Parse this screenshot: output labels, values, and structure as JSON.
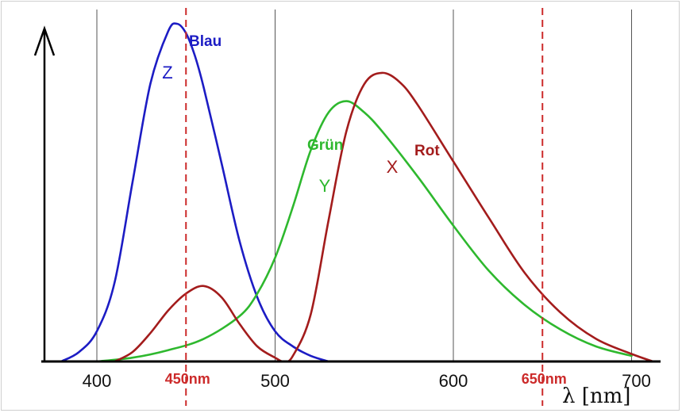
{
  "chart_data": {
    "type": "line",
    "xlabel": "λ [nm]",
    "xlim": [
      380,
      720
    ],
    "ylim": [
      0,
      1.85
    ],
    "x_ticks": [
      400,
      500,
      600,
      700
    ],
    "x_tick_labels": [
      "400",
      "500",
      "600",
      "700"
    ],
    "markers": [
      {
        "x": 450,
        "label": "450nm",
        "color": "#cc2a2a"
      },
      {
        "x": 650,
        "label": "650nm",
        "color": "#cc2a2a"
      }
    ],
    "series": [
      {
        "name": "Blau",
        "letter": "Z",
        "color": "#1c1cc4",
        "x": [
          380,
          390,
          400,
          410,
          420,
          430,
          440,
          445,
          450,
          455,
          460,
          470,
          480,
          490,
          500,
          510,
          520,
          530
        ],
        "y": [
          0.0,
          0.05,
          0.16,
          0.42,
          0.95,
          1.47,
          1.75,
          1.79,
          1.74,
          1.62,
          1.45,
          1.05,
          0.64,
          0.34,
          0.16,
          0.08,
          0.03,
          0.0
        ]
      },
      {
        "name": "Grün",
        "letter": "Y",
        "color": "#2eb82e",
        "x": [
          400,
          420,
          440,
          460,
          480,
          490,
          500,
          510,
          520,
          530,
          540,
          550,
          560,
          580,
          600,
          620,
          640,
          660,
          680,
          700
        ],
        "y": [
          0.0,
          0.02,
          0.06,
          0.12,
          0.24,
          0.36,
          0.55,
          0.82,
          1.12,
          1.32,
          1.38,
          1.32,
          1.22,
          0.98,
          0.72,
          0.48,
          0.3,
          0.17,
          0.08,
          0.03
        ]
      },
      {
        "name": "Rot",
        "letter": "X",
        "color": "#a31c1c",
        "x": [
          410,
          420,
          430,
          440,
          450,
          460,
          470,
          480,
          490,
          500,
          505,
          510,
          520,
          530,
          540,
          550,
          560,
          570,
          580,
          600,
          620,
          640,
          660,
          680,
          700,
          712
        ],
        "y": [
          0.0,
          0.05,
          0.15,
          0.27,
          0.36,
          0.4,
          0.34,
          0.2,
          0.08,
          0.02,
          0.0,
          0.03,
          0.25,
          0.75,
          1.22,
          1.47,
          1.53,
          1.48,
          1.36,
          1.06,
          0.76,
          0.47,
          0.26,
          0.12,
          0.04,
          0.0
        ]
      }
    ]
  }
}
